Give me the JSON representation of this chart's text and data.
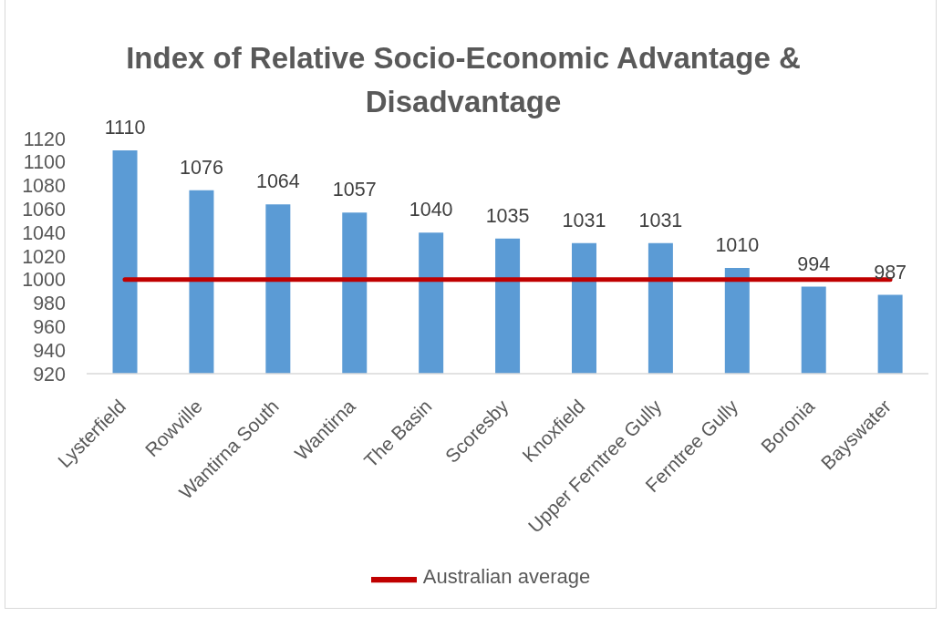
{
  "chart_data": {
    "type": "bar",
    "title": "Index of Relative Socio-Economic Advantage & Disadvantage",
    "categories": [
      "Lysterfield",
      "Rowville",
      "Wantirna South",
      "Wantirna",
      "The Basin",
      "Scoresby",
      "Knoxfield",
      "Upper Ferntree Gully",
      "Ferntree Gully",
      "Boronia",
      "Bayswater"
    ],
    "series": [
      {
        "color": "#5b9bd5",
        "values": [
          1110,
          1076,
          1064,
          1057,
          1040,
          1035,
          1031,
          1031,
          1010,
          994,
          987
        ],
        "value_labels": [
          "1110",
          "1076",
          "1064",
          "1057",
          "1040",
          "1035",
          "1031",
          "1031",
          "1010",
          "994",
          "987"
        ]
      },
      {
        "type": "line",
        "name": "Australian average",
        "color": "#c00000",
        "values": [
          1000,
          1000,
          1000,
          1000,
          1000,
          1000,
          1000,
          1000,
          1000,
          1000,
          1000
        ]
      }
    ],
    "ylim": [
      920,
      1120
    ],
    "yticks": [
      920,
      940,
      960,
      980,
      1000,
      1020,
      1040,
      1060,
      1080,
      1100,
      1120
    ],
    "legend": "bottom"
  }
}
